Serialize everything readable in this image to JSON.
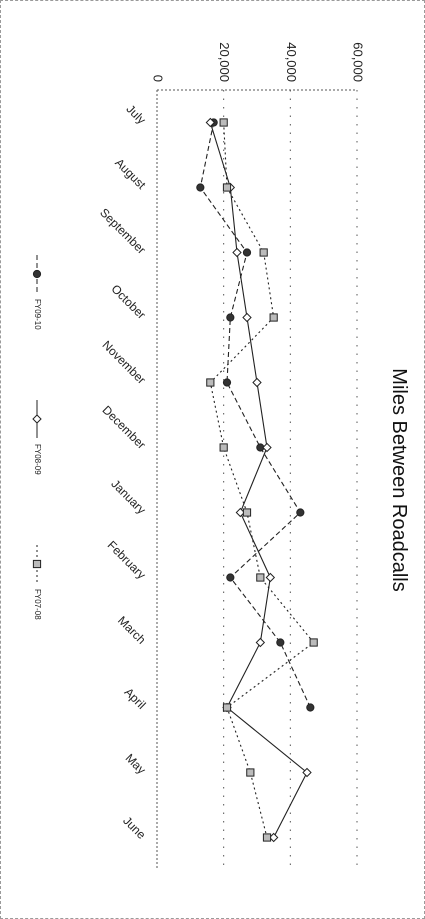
{
  "chart_data": {
    "type": "line",
    "title": "Miles Between Roadcalls",
    "xlabel": "",
    "ylabel": "",
    "categories": [
      "July",
      "August",
      "September",
      "October",
      "November",
      "December",
      "January",
      "February",
      "March",
      "April",
      "May",
      "June"
    ],
    "ylim": [
      0,
      60000
    ],
    "y_ticks": [
      "0",
      "20,000",
      "40,000",
      "60,000"
    ],
    "grid": "horizontal dotted",
    "legend_placement": "bottom",
    "orientation": "rotated 90 degrees clockwise",
    "series": [
      {
        "name": "FY09-10",
        "marker": "circle",
        "line": "dashed",
        "values": [
          17000,
          13000,
          27000,
          22000,
          21000,
          31000,
          43000,
          22000,
          37000,
          46000,
          null,
          null
        ]
      },
      {
        "name": "FY08-09",
        "marker": "diamond",
        "line": "solid",
        "values": [
          16000,
          22000,
          24000,
          27000,
          30000,
          33000,
          25000,
          34000,
          31000,
          21000,
          45000,
          35000
        ]
      },
      {
        "name": "FY07-08",
        "marker": "square",
        "line": "dotted",
        "values": [
          20000,
          21000,
          32000,
          35000,
          16000,
          20000,
          27000,
          31000,
          47000,
          21000,
          28000,
          33000
        ]
      }
    ],
    "colors": {
      "line": "#222222",
      "grid": "#555555",
      "marker_fill": "#ffffff"
    }
  }
}
